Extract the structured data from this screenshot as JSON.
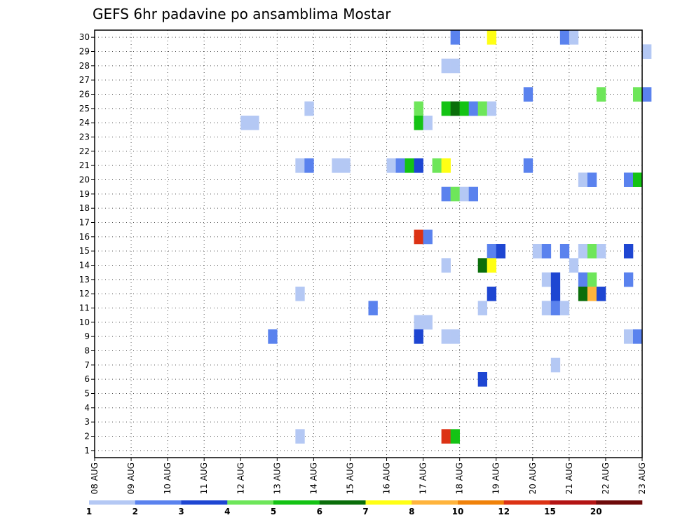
{
  "chart_data": {
    "type": "heatmap",
    "title": "GEFS 6hr padavine po ansamblima Mostar",
    "xlabel": "",
    "ylabel": "",
    "x_tick_labels": [
      "08 AUG",
      "09 AUG",
      "10 AUG",
      "11 AUG",
      "12 AUG",
      "13 AUG",
      "14 AUG",
      "15 AUG",
      "16 AUG",
      "17 AUG",
      "18 AUG",
      "19 AUG",
      "20 AUG",
      "21 AUG",
      "22 AUG",
      "23 AUG"
    ],
    "xlim_days": [
      0,
      15
    ],
    "x_step_hours": 6,
    "y_tick_labels": [
      "1",
      "2",
      "3",
      "4",
      "5",
      "6",
      "7",
      "8",
      "9",
      "10",
      "11",
      "12",
      "13",
      "14",
      "15",
      "16",
      "17",
      "18",
      "19",
      "20",
      "21",
      "22",
      "23",
      "24",
      "25",
      "26",
      "27",
      "28",
      "29",
      "30"
    ],
    "ylim": [
      0.5,
      30.5
    ],
    "grid": true,
    "legend": {
      "placement": "bottom",
      "labels": [
        "1",
        "2",
        "3",
        "4",
        "5",
        "6",
        "7",
        "8",
        "10",
        "12",
        "15",
        "20"
      ],
      "colors": [
        "#b4c8f4",
        "#5a82ee",
        "#1e46d2",
        "#6ee65a",
        "#14c314",
        "#0a6e0a",
        "#ffff14",
        "#ffb43c",
        "#f0820a",
        "#dc3214",
        "#b41414",
        "#6e0a0a"
      ]
    },
    "cells": [
      {
        "m": 30,
        "d": 9.75,
        "c": 2
      },
      {
        "m": 30,
        "d": 10.75,
        "c": 7
      },
      {
        "m": 30,
        "d": 12.75,
        "c": 2
      },
      {
        "m": 30,
        "d": 13.0,
        "c": 1
      },
      {
        "m": 29,
        "d": 15.0,
        "c": 1
      },
      {
        "m": 28,
        "d": 9.5,
        "c": 1
      },
      {
        "m": 28,
        "d": 9.75,
        "c": 1
      },
      {
        "m": 26,
        "d": 11.75,
        "c": 2
      },
      {
        "m": 26,
        "d": 13.75,
        "c": 4
      },
      {
        "m": 26,
        "d": 14.75,
        "c": 4
      },
      {
        "m": 26,
        "d": 15.0,
        "c": 2
      },
      {
        "m": 25,
        "d": 5.75,
        "c": 1
      },
      {
        "m": 25,
        "d": 8.75,
        "c": 4
      },
      {
        "m": 25,
        "d": 9.5,
        "c": 5
      },
      {
        "m": 25,
        "d": 9.75,
        "c": 6
      },
      {
        "m": 25,
        "d": 10.0,
        "c": 5
      },
      {
        "m": 25,
        "d": 10.25,
        "c": 2
      },
      {
        "m": 25,
        "d": 10.5,
        "c": 4
      },
      {
        "m": 25,
        "d": 10.75,
        "c": 1
      },
      {
        "m": 24,
        "d": 4.0,
        "c": 1
      },
      {
        "m": 24,
        "d": 4.25,
        "c": 1
      },
      {
        "m": 24,
        "d": 8.75,
        "c": 5
      },
      {
        "m": 24,
        "d": 9.0,
        "c": 1
      },
      {
        "m": 21,
        "d": 5.5,
        "c": 1
      },
      {
        "m": 21,
        "d": 5.75,
        "c": 2
      },
      {
        "m": 21,
        "d": 6.5,
        "c": 1
      },
      {
        "m": 21,
        "d": 6.75,
        "c": 1
      },
      {
        "m": 21,
        "d": 8.0,
        "c": 1
      },
      {
        "m": 21,
        "d": 8.25,
        "c": 2
      },
      {
        "m": 21,
        "d": 8.5,
        "c": 5
      },
      {
        "m": 21,
        "d": 8.75,
        "c": 3
      },
      {
        "m": 21,
        "d": 9.25,
        "c": 4
      },
      {
        "m": 21,
        "d": 9.5,
        "c": 7
      },
      {
        "m": 21,
        "d": 11.75,
        "c": 2
      },
      {
        "m": 20,
        "d": 13.25,
        "c": 1
      },
      {
        "m": 20,
        "d": 13.5,
        "c": 2
      },
      {
        "m": 20,
        "d": 14.5,
        "c": 2
      },
      {
        "m": 20,
        "d": 14.75,
        "c": 5
      },
      {
        "m": 19,
        "d": 9.5,
        "c": 2
      },
      {
        "m": 19,
        "d": 9.75,
        "c": 4
      },
      {
        "m": 19,
        "d": 10.0,
        "c": 1
      },
      {
        "m": 19,
        "d": 10.25,
        "c": 2
      },
      {
        "m": 16,
        "d": 8.75,
        "c": 10
      },
      {
        "m": 16,
        "d": 9.0,
        "c": 2
      },
      {
        "m": 15,
        "d": 10.75,
        "c": 2
      },
      {
        "m": 15,
        "d": 11.0,
        "c": 3
      },
      {
        "m": 15,
        "d": 12.0,
        "c": 1
      },
      {
        "m": 15,
        "d": 12.25,
        "c": 2
      },
      {
        "m": 15,
        "d": 12.75,
        "c": 2
      },
      {
        "m": 15,
        "d": 13.25,
        "c": 1
      },
      {
        "m": 15,
        "d": 13.5,
        "c": 4
      },
      {
        "m": 15,
        "d": 13.75,
        "c": 1
      },
      {
        "m": 15,
        "d": 14.5,
        "c": 3
      },
      {
        "m": 14,
        "d": 9.5,
        "c": 1
      },
      {
        "m": 14,
        "d": 10.5,
        "c": 6
      },
      {
        "m": 14,
        "d": 10.75,
        "c": 7
      },
      {
        "m": 14,
        "d": 13.0,
        "c": 1
      },
      {
        "m": 13,
        "d": 12.25,
        "c": 1
      },
      {
        "m": 13,
        "d": 12.5,
        "c": 3
      },
      {
        "m": 13,
        "d": 13.25,
        "c": 2
      },
      {
        "m": 13,
        "d": 13.5,
        "c": 4
      },
      {
        "m": 13,
        "d": 14.5,
        "c": 2
      },
      {
        "m": 12,
        "d": 5.5,
        "c": 1
      },
      {
        "m": 12,
        "d": 10.75,
        "c": 3
      },
      {
        "m": 12,
        "d": 12.5,
        "c": 3
      },
      {
        "m": 12,
        "d": 13.25,
        "c": 6
      },
      {
        "m": 12,
        "d": 13.5,
        "c": 8
      },
      {
        "m": 12,
        "d": 13.75,
        "c": 3
      },
      {
        "m": 11,
        "d": 7.5,
        "c": 2
      },
      {
        "m": 11,
        "d": 10.5,
        "c": 1
      },
      {
        "m": 11,
        "d": 12.25,
        "c": 1
      },
      {
        "m": 11,
        "d": 12.5,
        "c": 2
      },
      {
        "m": 11,
        "d": 12.75,
        "c": 1
      },
      {
        "m": 10,
        "d": 8.75,
        "c": 1
      },
      {
        "m": 10,
        "d": 9.0,
        "c": 1
      },
      {
        "m": 9,
        "d": 4.75,
        "c": 2
      },
      {
        "m": 9,
        "d": 8.75,
        "c": 3
      },
      {
        "m": 9,
        "d": 9.5,
        "c": 1
      },
      {
        "m": 9,
        "d": 9.75,
        "c": 1
      },
      {
        "m": 9,
        "d": 14.5,
        "c": 1
      },
      {
        "m": 9,
        "d": 14.75,
        "c": 2
      },
      {
        "m": 7,
        "d": 12.5,
        "c": 1
      },
      {
        "m": 6,
        "d": 10.5,
        "c": 3
      },
      {
        "m": 2,
        "d": 5.5,
        "c": 1
      },
      {
        "m": 2,
        "d": 9.5,
        "c": 10
      },
      {
        "m": 2,
        "d": 9.75,
        "c": 5
      }
    ]
  }
}
